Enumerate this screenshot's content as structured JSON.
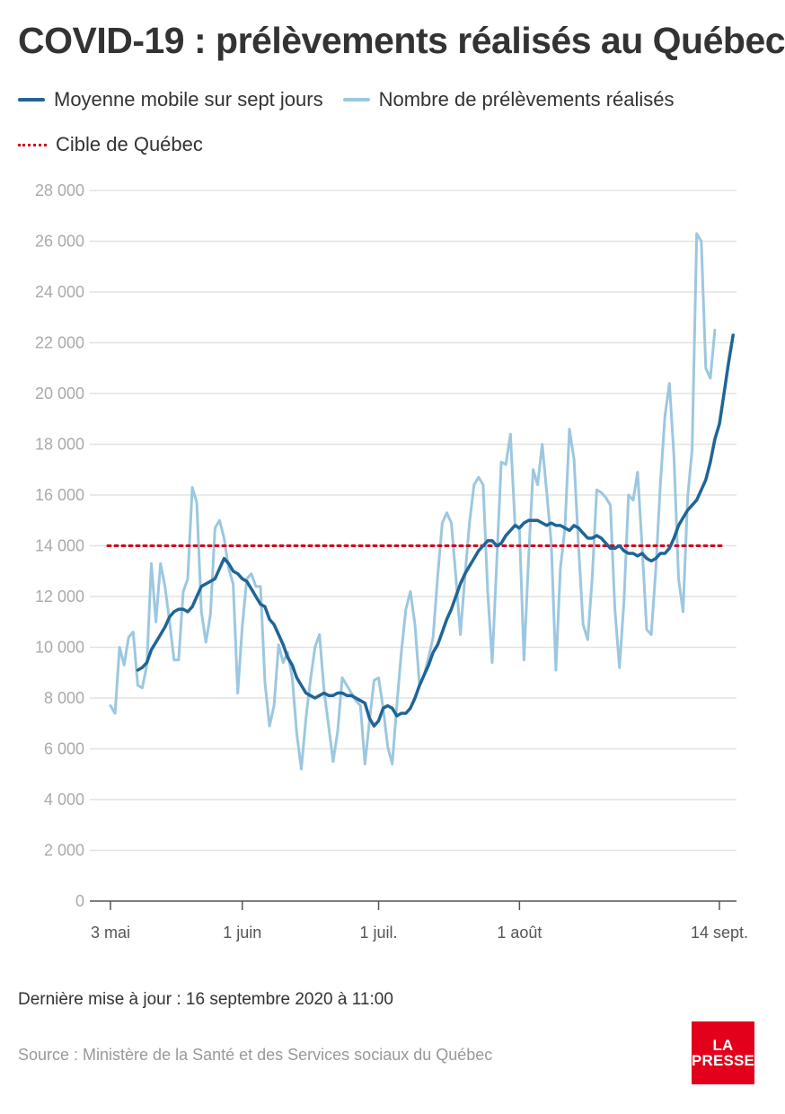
{
  "title": "COVID-19 : prélèvements réalisés au Québec",
  "legend": {
    "moving_average": "Moyenne mobile sur sept jours",
    "daily": "Nombre de prélèvements réalisés",
    "target": "Cible de Québec"
  },
  "footer": {
    "updated": "Dernière mise à jour : 16 septembre 2020 à 11:00",
    "source": "Source : Ministère de la Santé et des Services sociaux du Québec"
  },
  "logo": {
    "line1": "LA",
    "line2": "PRESSE"
  },
  "colors": {
    "moving_average": "#1f6596",
    "daily": "#9cc7e0",
    "target": "#d0021b",
    "grid": "#e3e3e3"
  },
  "chart_data": {
    "type": "line",
    "ylim": [
      0,
      28000
    ],
    "y_ticks": [
      0,
      2000,
      4000,
      6000,
      8000,
      10000,
      12000,
      14000,
      16000,
      18000,
      20000,
      22000,
      24000,
      26000,
      28000
    ],
    "y_tick_labels": [
      "0",
      "2 000",
      "4 000",
      "6 000",
      "8 000",
      "10 000",
      "12 000",
      "14 000",
      "16 000",
      "18 000",
      "20 000",
      "22 000",
      "24 000",
      "26 000",
      "28 000"
    ],
    "x_ticks": [
      {
        "date": "2020-05-03",
        "label": "3 mai"
      },
      {
        "date": "2020-06-01",
        "label": "1 juin"
      },
      {
        "date": "2020-07-01",
        "label": "1 juil."
      },
      {
        "date": "2020-08-01",
        "label": "1 août"
      },
      {
        "date": "2020-09-14",
        "label": "14 sept."
      }
    ],
    "target": 14000,
    "series": [
      {
        "name": "Nombre de prélèvements réalisés",
        "start": "2020-05-03",
        "values": [
          7700,
          7400,
          10000,
          9300,
          10400,
          10600,
          8500,
          8400,
          9300,
          13300,
          11000,
          13300,
          12400,
          11000,
          9500,
          9500,
          12200,
          12700,
          16300,
          15700,
          11400,
          10200,
          11300,
          14700,
          15000,
          14300,
          13100,
          12500,
          8200,
          10800,
          12700,
          12900,
          12400,
          12400,
          8600,
          6900,
          7700,
          10100,
          9400,
          9800,
          8800,
          6600,
          5200,
          7200,
          8700,
          10000,
          10500,
          8300,
          6900,
          5500,
          6700,
          8800,
          8500,
          8200,
          7900,
          7700,
          5400,
          7100,
          8700,
          8800,
          7600,
          6100,
          5400,
          7700,
          9800,
          11500,
          12200,
          10900,
          8500,
          8900,
          9600,
          10400,
          12800,
          14900,
          15300,
          14900,
          12800,
          10500,
          12800,
          14900,
          16400,
          16700,
          16400,
          12200,
          9400,
          13400,
          17300,
          17200,
          18400,
          14900,
          14600,
          9500,
          13500,
          17000,
          16400,
          18000,
          16100,
          14100,
          9100,
          13100,
          14700,
          18600,
          17400,
          14000,
          10900,
          10300,
          12700,
          16200,
          16100,
          15900,
          15600,
          11500,
          9200,
          11800,
          16000,
          15800,
          16900,
          13900,
          10700,
          10500,
          13100,
          16400,
          19100,
          20400,
          17500,
          12700,
          11400,
          15900,
          17800,
          26300,
          26000,
          21000,
          20600,
          22500
        ]
      },
      {
        "name": "Moyenne mobile sur sept jours",
        "start": "2020-05-09",
        "values": [
          9100,
          9200,
          9400,
          9900,
          10200,
          10500,
          10800,
          11200,
          11400,
          11500,
          11500,
          11400,
          11600,
          12000,
          12400,
          12500,
          12600,
          12700,
          13100,
          13500,
          13300,
          13000,
          12900,
          12700,
          12600,
          12300,
          12000,
          11700,
          11600,
          11100,
          10900,
          10500,
          10100,
          9600,
          9300,
          8800,
          8500,
          8200,
          8100,
          8000,
          8100,
          8200,
          8100,
          8100,
          8200,
          8200,
          8100,
          8100,
          8000,
          7900,
          7800,
          7200,
          6900,
          7100,
          7600,
          7700,
          7600,
          7300,
          7400,
          7400,
          7600,
          8000,
          8500,
          8900,
          9300,
          9800,
          10100,
          10600,
          11100,
          11500,
          12000,
          12500,
          12900,
          13200,
          13500,
          13800,
          14000,
          14200,
          14200,
          14000,
          14100,
          14400,
          14600,
          14800,
          14700,
          14900,
          15000,
          15000,
          15000,
          14900,
          14800,
          14900,
          14800,
          14800,
          14700,
          14600,
          14800,
          14700,
          14500,
          14300,
          14300,
          14400,
          14300,
          14100,
          13900,
          13900,
          14000,
          13800,
          13700,
          13700,
          13600,
          13700,
          13500,
          13400,
          13500,
          13700,
          13700,
          13900,
          14300,
          14800,
          15100,
          15400,
          15600,
          15800,
          16200,
          16600,
          17300,
          18200,
          18800,
          20000,
          21200,
          22300
        ]
      }
    ]
  }
}
